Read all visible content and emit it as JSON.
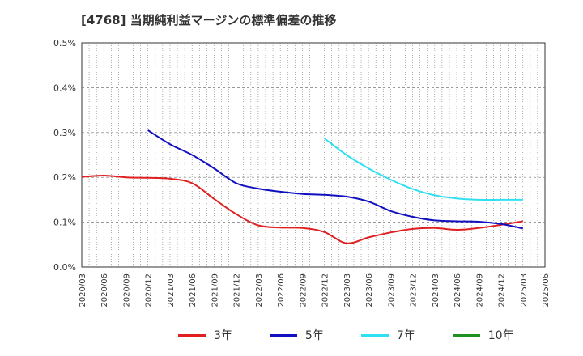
{
  "chart_data": {
    "type": "line",
    "title": "[4768]  当期純利益マージンの標準偏差の推移",
    "xlabel": "",
    "ylabel": "",
    "x": [
      "2020/03",
      "2020/06",
      "2020/09",
      "2020/12",
      "2021/03",
      "2021/06",
      "2021/09",
      "2021/12",
      "2022/03",
      "2022/06",
      "2022/09",
      "2022/12",
      "2023/03",
      "2023/06",
      "2023/09",
      "2023/12",
      "2024/03",
      "2024/06",
      "2024/09",
      "2024/12",
      "2025/03",
      "2025/06"
    ],
    "ylim": [
      0,
      0.5
    ],
    "y_ticks": [
      "0.0%",
      "0.1%",
      "0.2%",
      "0.3%",
      "0.4%",
      "0.5%"
    ],
    "grid": true,
    "legend_position": "bottom",
    "series": [
      {
        "name": "3年",
        "color": "#e02020",
        "values": [
          0.201,
          0.204,
          0.2,
          0.199,
          0.197,
          0.187,
          0.152,
          0.118,
          0.093,
          0.088,
          0.087,
          0.078,
          0.053,
          0.066,
          0.077,
          0.085,
          0.087,
          0.083,
          0.087,
          0.094,
          0.102,
          null
        ]
      },
      {
        "name": "5年",
        "color": "#1010c0",
        "values": [
          null,
          null,
          null,
          0.305,
          0.274,
          0.25,
          0.22,
          0.187,
          0.175,
          0.168,
          0.163,
          0.161,
          0.157,
          0.146,
          0.125,
          0.112,
          0.104,
          0.102,
          0.101,
          0.096,
          0.086,
          null
        ]
      },
      {
        "name": "7年",
        "color": "#30e0f0",
        "values": [
          null,
          null,
          null,
          null,
          null,
          null,
          null,
          null,
          null,
          null,
          null,
          0.287,
          0.25,
          0.22,
          0.195,
          0.174,
          0.16,
          0.153,
          0.15,
          0.15,
          0.15,
          null
        ]
      },
      {
        "name": "10年",
        "color": "#209020",
        "values": [
          null,
          null,
          null,
          null,
          null,
          null,
          null,
          null,
          null,
          null,
          null,
          null,
          null,
          null,
          null,
          null,
          null,
          null,
          null,
          null,
          null,
          null
        ]
      }
    ]
  }
}
